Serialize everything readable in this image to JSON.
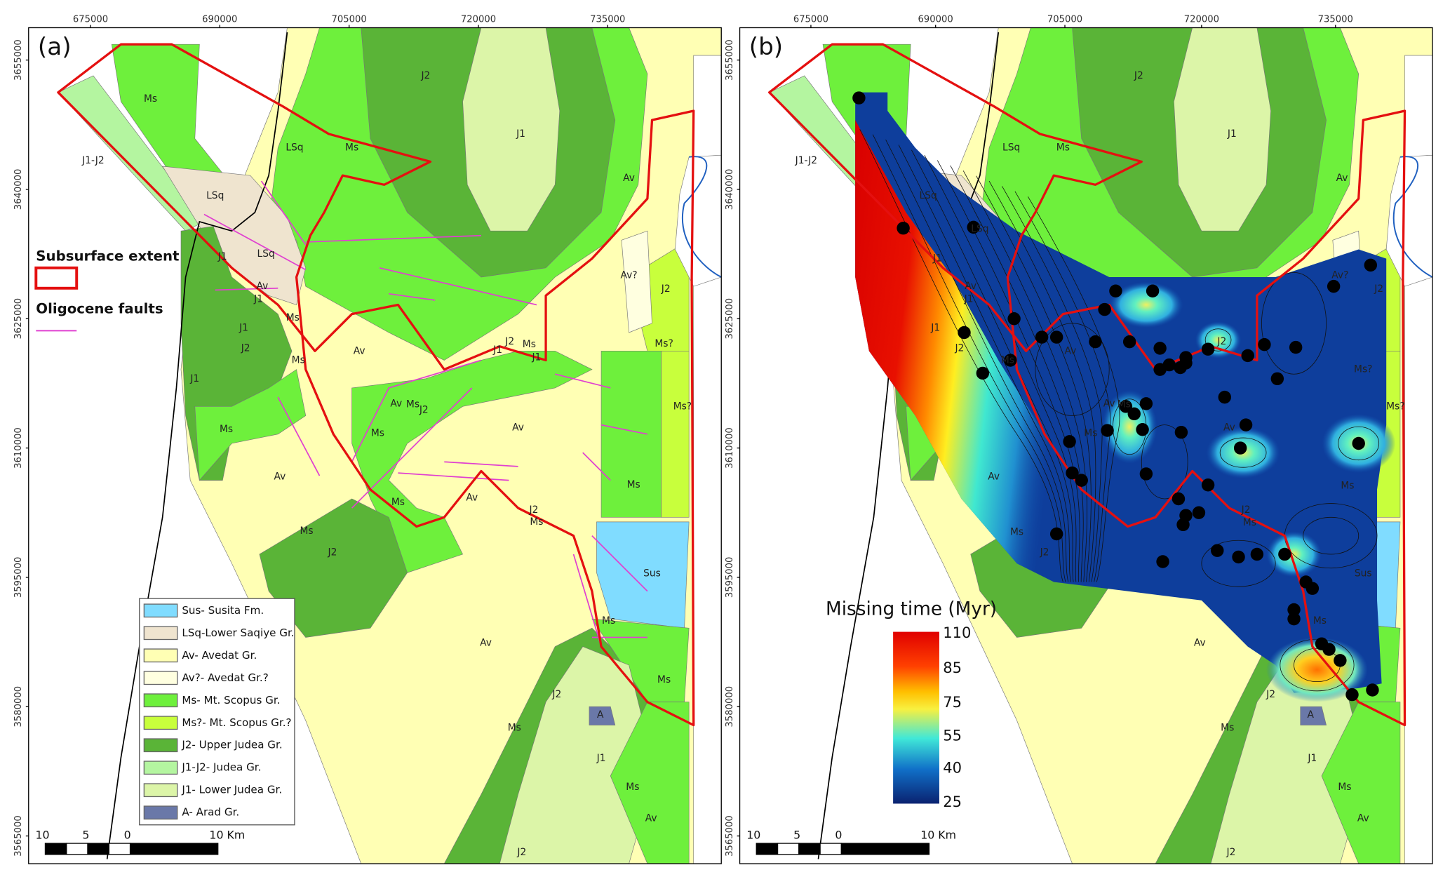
{
  "panels": [
    {
      "label": "(a)",
      "x_labels": [
        "675000",
        "690000",
        "705000",
        "720000",
        "735000"
      ],
      "y_labels": [
        "3655000",
        "3640000",
        "3625000",
        "3610000",
        "3595000",
        "3580000",
        "3565000"
      ],
      "map_labels": [
        "Ms",
        "J2",
        "J1",
        "J1-J2",
        "LSq",
        "Ms",
        "Av",
        "LSq",
        "J1",
        "LSq",
        "Av",
        "J1",
        "Av?",
        "J2",
        "Ms",
        "J1",
        "J2",
        "J2",
        "Ms",
        "J1",
        "J1",
        "Av",
        "Ms",
        "Ms?",
        "J1",
        "Av",
        "Ms",
        "J2",
        "Ms?",
        "Av",
        "Ms",
        "Ms",
        "Av",
        "Ms",
        "Ms",
        "Av",
        "J2",
        "Ms",
        "Ms",
        "J2",
        "Sus",
        "Ms",
        "Av",
        "Ms",
        "J2",
        "A",
        "Ms",
        "J1",
        "Ms",
        "Av",
        "J2"
      ],
      "scale_labels": [
        "10",
        "5",
        "0",
        "10 Km"
      ]
    },
    {
      "label": "(b)",
      "x_labels": [
        "675000",
        "690000",
        "705000",
        "720000",
        "735000"
      ],
      "y_labels": [
        "3655000",
        "3640000",
        "3625000",
        "3610000",
        "3595000",
        "3580000",
        "3565000"
      ],
      "map_labels": [
        "J2",
        "J1",
        "J1-J2",
        "LSq",
        "Ms",
        "Av",
        "LSq",
        "LSq",
        "J1",
        "Av",
        "J1",
        "Av?",
        "J2",
        "J1",
        "J2",
        "Ms",
        "Av",
        "J2",
        "Ms?",
        "Av",
        "Ms",
        "Ms",
        "Av",
        "Ms?",
        "Ms",
        "J2",
        "Ms",
        "Av",
        "Ms",
        "J2",
        "Sus",
        "Ms",
        "Av",
        "J2",
        "A",
        "Ms",
        "J1",
        "Ms",
        "Av",
        "J2"
      ],
      "scale_labels": [
        "10",
        "5",
        "0",
        "10 Km"
      ]
    }
  ],
  "legend": {
    "subsurface": "Subsurface extent",
    "faults": "Oligocene faults",
    "units": [
      "Sus- Susita Fm.",
      "LSq-Lower Saqiye Gr.",
      "Av- Avedat Gr.",
      "Av?- Avedat Gr.?",
      "Ms- Mt. Scopus Gr.",
      "Ms?- Mt. Scopus Gr.?",
      "J2- Upper Judea Gr.",
      "J1-J2- Judea Gr.",
      "J1- Lower Judea Gr.",
      "A- Arad Gr."
    ]
  },
  "colorbar": {
    "title": "Missing time (Myr)",
    "ticks": [
      110,
      85,
      75,
      55,
      40,
      25
    ]
  }
}
